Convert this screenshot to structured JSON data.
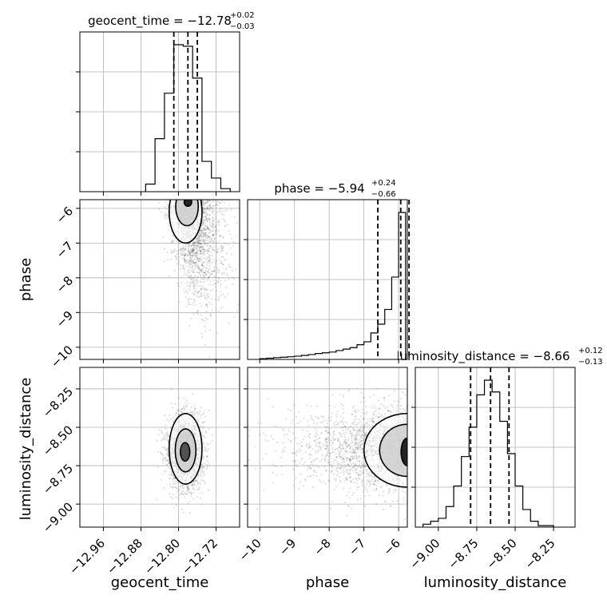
{
  "chart_data": {
    "type": "corner",
    "parameters": [
      "geocent_time",
      "phase",
      "luminosity_distance"
    ],
    "axis_labels": {
      "x": [
        "geocent_time",
        "phase",
        "luminosity_distance"
      ],
      "y": [
        "",
        "phase",
        "luminosity_distance"
      ]
    },
    "titles": [
      {
        "parameter": "geocent_time",
        "median": "−12.78",
        "upper": "+0.02",
        "lower": "−0.03",
        "prefix": "geocent_time = "
      },
      {
        "parameter": "phase",
        "median": "−5.94",
        "upper": "+0.24",
        "lower": "−0.66",
        "prefix": "phase = "
      },
      {
        "parameter": "luminosity_distance",
        "median": "−8.66",
        "upper": "+0.12",
        "lower": "−0.13",
        "prefix": "luminosity_distance = "
      }
    ],
    "ranges": {
      "geocent_time": [
        -13.01,
        -12.67
      ],
      "phase": [
        -10.35,
        -5.75
      ],
      "luminosity_distance": [
        -9.15,
        -8.11
      ]
    },
    "ticks": {
      "geocent_time": {
        "values": [
          -12.96,
          -12.88,
          -12.8,
          -12.72
        ],
        "labels": [
          "−12.96",
          "−12.88",
          "−12.80",
          "−12.72"
        ]
      },
      "phase": {
        "values": [
          -10,
          -9,
          -8,
          -7,
          -6
        ],
        "labels": [
          "−10",
          "−9",
          "−8",
          "−7",
          "−6"
        ]
      },
      "luminosity_distance": {
        "values": [
          -9.0,
          -8.75,
          -8.5,
          -8.25
        ],
        "labels": [
          "−9.00",
          "−8.75",
          "−8.50",
          "−8.25"
        ]
      }
    },
    "quantiles": {
      "geocent_time": [
        -12.81,
        -12.78,
        -12.76
      ],
      "phase": [
        -6.6,
        -5.94,
        -5.7
      ],
      "luminosity_distance": [
        -8.79,
        -8.66,
        -8.54
      ]
    },
    "histograms": {
      "geocent_time": {
        "edges": [
          -12.87,
          -12.85,
          -12.83,
          -12.81,
          -12.79,
          -12.77,
          -12.75,
          -12.73,
          -12.71,
          -12.69
        ],
        "counts": [
          0.05,
          0.35,
          0.65,
          0.97,
          0.96,
          0.75,
          0.2,
          0.09,
          0.02
        ]
      },
      "phase": {
        "edges": [
          -10.0,
          -9.8,
          -9.6,
          -9.4,
          -9.2,
          -9.0,
          -8.8,
          -8.6,
          -8.4,
          -8.2,
          -8.0,
          -7.8,
          -7.6,
          -7.4,
          -7.2,
          -7.0,
          -6.8,
          -6.6,
          -6.4,
          -6.2,
          -6.0,
          -5.8
        ],
        "counts": [
          0.005,
          0.008,
          0.012,
          0.015,
          0.018,
          0.022,
          0.027,
          0.033,
          0.04,
          0.045,
          0.05,
          0.06,
          0.07,
          0.08,
          0.1,
          0.12,
          0.18,
          0.24,
          0.34,
          0.56,
          1.0
        ]
      },
      "luminosity_distance": {
        "edges": [
          -9.1,
          -9.05,
          -9.0,
          -8.95,
          -8.9,
          -8.85,
          -8.8,
          -8.75,
          -8.7,
          -8.65,
          -8.6,
          -8.55,
          -8.5,
          -8.45,
          -8.4,
          -8.35,
          -8.3,
          -8.25
        ],
        "counts": [
          0.02,
          0.04,
          0.06,
          0.14,
          0.28,
          0.48,
          0.68,
          0.9,
          1.0,
          0.92,
          0.72,
          0.5,
          0.28,
          0.12,
          0.04,
          0.01,
          0.01
        ]
      }
    },
    "grid": true
  }
}
